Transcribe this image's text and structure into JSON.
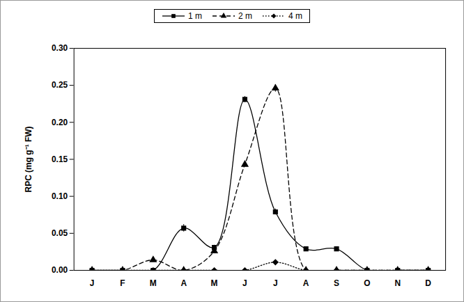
{
  "chart_data": {
    "type": "line",
    "y_label": "RPC (mg g⁻¹ FW)",
    "categories": [
      "J",
      "F",
      "M",
      "A",
      "M",
      "J",
      "J",
      "A",
      "S",
      "O",
      "N",
      "D"
    ],
    "ylim": [
      0,
      0.3
    ],
    "yticks": [
      {
        "value": 0,
        "label": "0.00"
      },
      {
        "value": 0.05,
        "label": "0.05"
      },
      {
        "value": 0.1,
        "label": "0.10"
      },
      {
        "value": 0.15,
        "label": "0.15"
      },
      {
        "value": 0.2,
        "label": "0.20"
      },
      {
        "value": 0.25,
        "label": "0.25"
      },
      {
        "value": 0.3,
        "label": "0.30"
      }
    ],
    "grid": false,
    "legend": "top",
    "series": [
      {
        "name": "1 m",
        "color": "#000000",
        "marker": "square",
        "line_style": "solid",
        "values": [
          0,
          0,
          0,
          0.057,
          0.031,
          0.231,
          0.079,
          0.029,
          0.029,
          0,
          0,
          0
        ],
        "errors": [
          0,
          0,
          0,
          0.005,
          0.003,
          0.004,
          0.004,
          0.002,
          0.003,
          0,
          0,
          0
        ]
      },
      {
        "name": "2 m",
        "color": "#000000",
        "marker": "triangle",
        "line_style": "dashed",
        "values": [
          0,
          0,
          0.014,
          0,
          0.026,
          0.143,
          0.246,
          0,
          0,
          0,
          0,
          0
        ],
        "errors": [
          0,
          0,
          0,
          0,
          0,
          0,
          0.005,
          0,
          0,
          0,
          0,
          0
        ]
      },
      {
        "name": "4 m",
        "color": "#000000",
        "marker": "diamond",
        "line_style": "dotted",
        "values": [
          0,
          0,
          0,
          0,
          0,
          0,
          0.011,
          0,
          0,
          0,
          0,
          0
        ],
        "errors": [
          0,
          0,
          0,
          0,
          0,
          0,
          0,
          0,
          0,
          0,
          0,
          0
        ]
      }
    ]
  }
}
